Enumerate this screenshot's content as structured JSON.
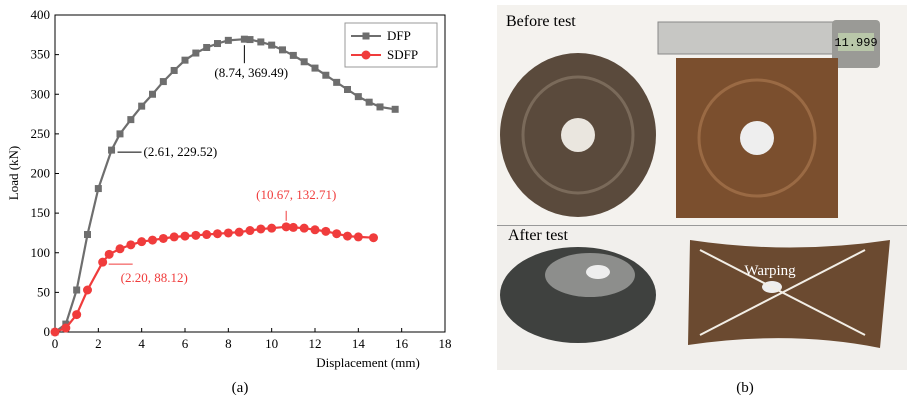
{
  "chart_data": {
    "type": "line",
    "x_label": "Displacement (mm)",
    "y_label": "Load (kN)",
    "xlim": [
      0,
      18
    ],
    "xticks": [
      0,
      2,
      4,
      6,
      8,
      10,
      12,
      14,
      16,
      18
    ],
    "ylim": [
      0,
      400
    ],
    "yticks": [
      0,
      50,
      100,
      150,
      200,
      250,
      300,
      350,
      400
    ],
    "legend": "top-right",
    "series": [
      {
        "name": "DFP",
        "color": "#6e6e6e",
        "marker": "square",
        "x": [
          0,
          0.5,
          1.0,
          1.5,
          2.0,
          2.61,
          3.0,
          3.5,
          4.0,
          4.5,
          5.0,
          5.5,
          6.0,
          6.5,
          7.0,
          7.5,
          8.0,
          8.74,
          9.0,
          9.5,
          10.0,
          10.5,
          11.0,
          11.5,
          12.0,
          12.5,
          13.0,
          13.5,
          14.0,
          14.5,
          15.0,
          15.7
        ],
        "values": [
          0,
          10,
          53,
          123,
          181,
          229.52,
          250,
          268,
          285,
          300,
          316,
          330,
          343,
          352,
          359,
          364,
          368,
          369.49,
          369,
          366,
          362,
          356,
          349,
          341,
          333,
          324,
          315,
          306,
          297,
          290,
          284,
          281
        ]
      },
      {
        "name": "SDFP",
        "color": "#f03c3c",
        "marker": "circle",
        "x": [
          0,
          0.5,
          1,
          1.5,
          2.2,
          2.5,
          3,
          3.5,
          4,
          4.5,
          5,
          5.5,
          6,
          6.5,
          7,
          7.5,
          8,
          8.5,
          9,
          9.5,
          10,
          10.67,
          11,
          11.5,
          12,
          12.5,
          13,
          13.5,
          14,
          14.7
        ],
        "values": [
          0,
          5,
          22,
          53,
          88.12,
          98,
          105,
          110,
          114,
          116,
          118,
          120,
          121,
          122,
          123,
          124,
          125,
          126,
          128,
          130,
          131,
          132.71,
          132,
          131,
          129,
          127,
          124,
          121,
          120,
          119
        ]
      }
    ],
    "annotations": [
      {
        "text": "(8.74, 369.49)",
        "color": "#000000"
      },
      {
        "text": "(2.61, 229.52)",
        "color": "#000000"
      },
      {
        "text": "(10.67, 132.71)",
        "color": "#f03c3c"
      },
      {
        "text": "(2.20, 88.12)",
        "color": "#f03c3c"
      }
    ],
    "caption": "(a)"
  },
  "photos": {
    "before_label": "Before test",
    "after_label": "After test",
    "caliper_reading": "11.999",
    "warping_label": "Warping",
    "caption": "(b)"
  }
}
